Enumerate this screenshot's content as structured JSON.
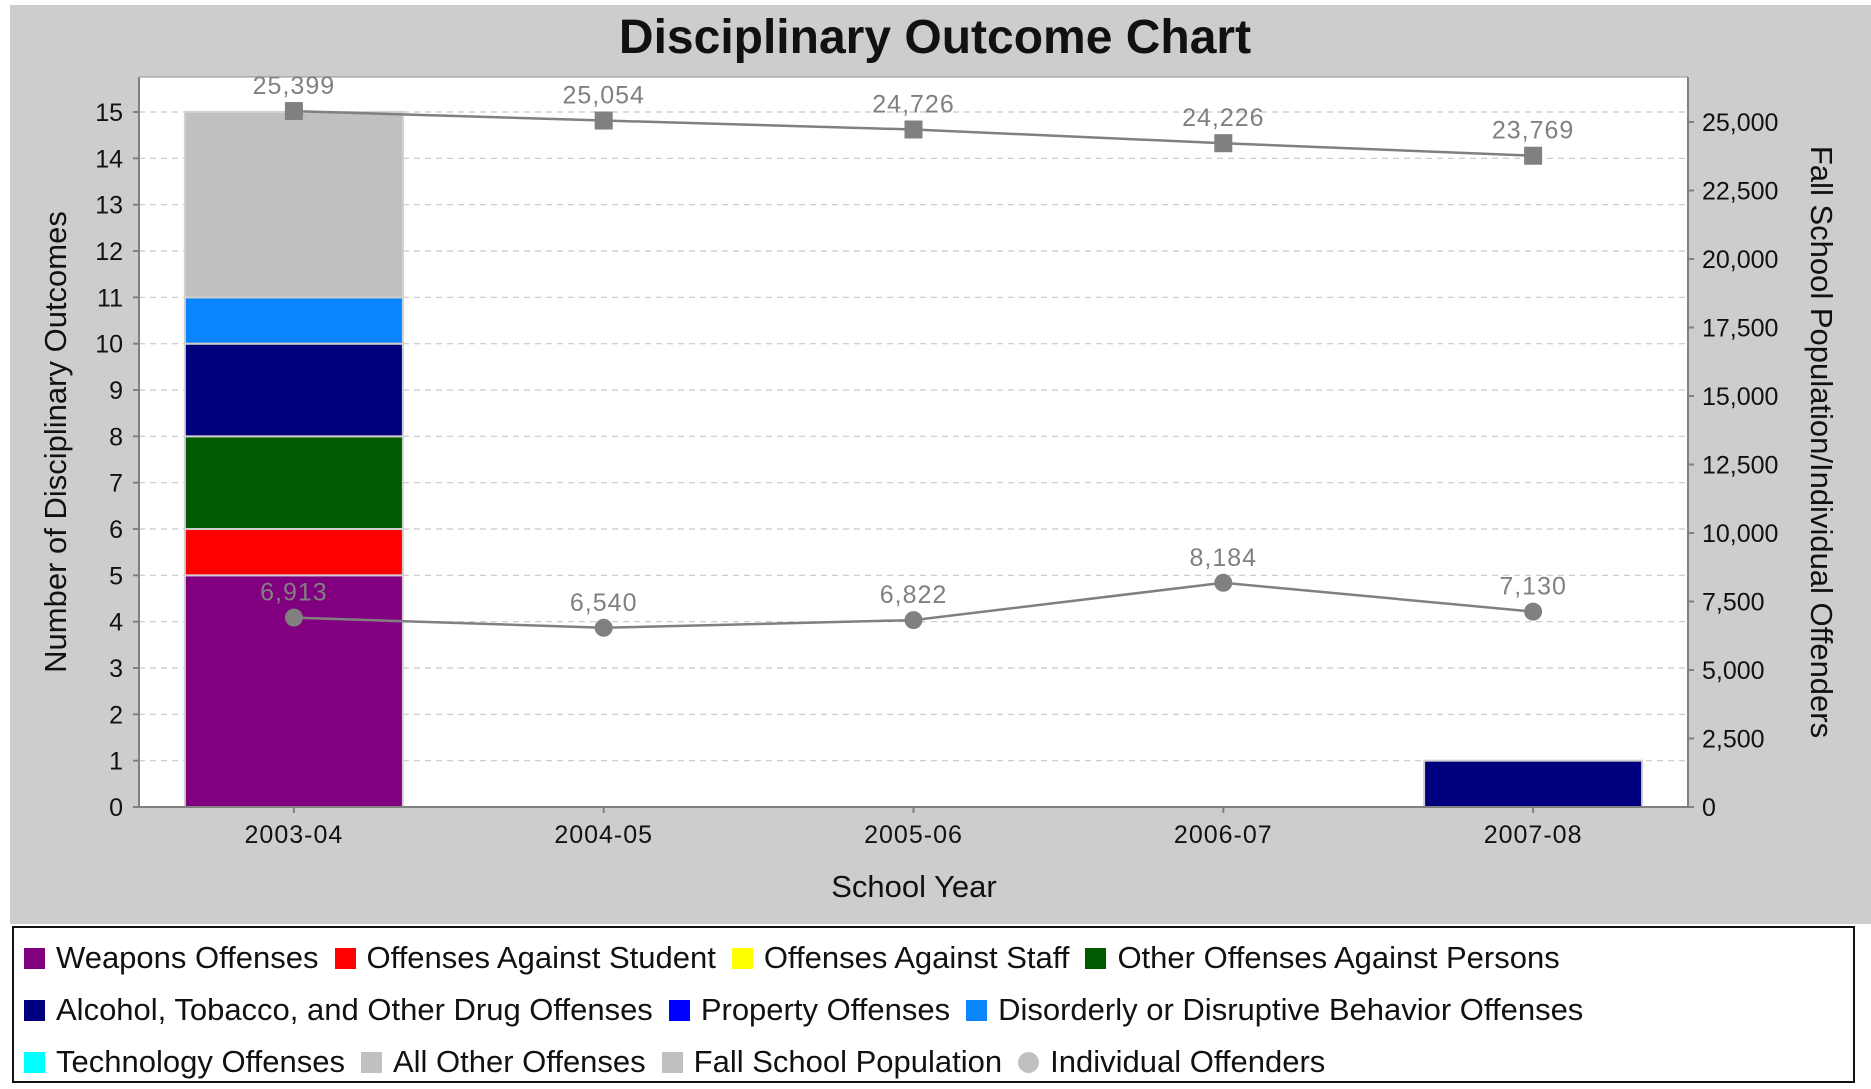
{
  "chart_data": {
    "type": "bar",
    "title": "Disciplinary Outcome Chart",
    "xlabel": "School Year",
    "ylabel": "Number of Disciplinary Outcomes",
    "y2label": "Fall School Population/Individual Offenders",
    "categories": [
      "2003-04",
      "2004-05",
      "2005-06",
      "2006-07",
      "2007-08"
    ],
    "ylim": [
      0,
      15
    ],
    "yticks": [
      "0",
      "1",
      "2",
      "3",
      "4",
      "5",
      "6",
      "7",
      "8",
      "9",
      "10",
      "11",
      "12",
      "13",
      "14",
      "15"
    ],
    "y2lim": [
      0,
      25000
    ],
    "y2ticks": [
      "0",
      "2,500",
      "5,000",
      "7,500",
      "10,000",
      "12,500",
      "15,000",
      "17,500",
      "20,000",
      "22,500",
      "25,000"
    ],
    "grid": true,
    "legend_position": "bottom",
    "stacked": true,
    "series": [
      {
        "name": "Weapons Offenses",
        "color": "#800080",
        "values": [
          5,
          0,
          0,
          0,
          0
        ]
      },
      {
        "name": "Offenses Against Student",
        "color": "#ff0000",
        "values": [
          1,
          0,
          0,
          0,
          0
        ]
      },
      {
        "name": "Offenses Against Staff",
        "color": "#ffff00",
        "values": [
          0,
          0,
          0,
          0,
          0
        ]
      },
      {
        "name": "Other Offenses Against Persons",
        "color": "#005a00",
        "values": [
          2,
          0,
          0,
          0,
          0
        ]
      },
      {
        "name": "Alcohol, Tobacco, and Other Drug Offenses",
        "color": "#00007f",
        "values": [
          2,
          0,
          0,
          0,
          1
        ]
      },
      {
        "name": "Property Offenses",
        "color": "#0000ff",
        "values": [
          0,
          0,
          0,
          0,
          0
        ]
      },
      {
        "name": "Disorderly or Disruptive Behavior Offenses",
        "color": "#0a84ff",
        "values": [
          1,
          0,
          0,
          0,
          0
        ]
      },
      {
        "name": "Technology Offenses",
        "color": "#00ffff",
        "values": [
          0,
          0,
          0,
          0,
          0
        ]
      },
      {
        "name": "All Other Offenses",
        "color": "#c0c0c0",
        "values": [
          4,
          0,
          0,
          0,
          0
        ]
      }
    ],
    "line_series": [
      {
        "name": "Fall School Population",
        "color": "#808080",
        "marker": "square",
        "values": [
          25399,
          25054,
          24726,
          24226,
          23769
        ],
        "labels": [
          "25,399",
          "25,054",
          "24,726",
          "24,226",
          "23,769"
        ]
      },
      {
        "name": "Individual Offenders",
        "color": "#808080",
        "marker": "circle",
        "values": [
          6913,
          6540,
          6822,
          8184,
          7130
        ],
        "labels": [
          "6,913",
          "6,540",
          "6,822",
          "8,184",
          "7,130"
        ]
      }
    ]
  },
  "legend": {
    "rows": [
      [
        {
          "label": "Weapons Offenses",
          "color": "#800080",
          "shape": "square"
        },
        {
          "label": "Offenses Against Student",
          "color": "#ff0000",
          "shape": "square"
        },
        {
          "label": "Offenses Against Staff",
          "color": "#ffff00",
          "shape": "square"
        },
        {
          "label": "Other Offenses Against Persons",
          "color": "#005a00",
          "shape": "square"
        }
      ],
      [
        {
          "label": "Alcohol, Tobacco, and Other Drug Offenses",
          "color": "#00007f",
          "shape": "square"
        },
        {
          "label": "Property Offenses",
          "color": "#0000ff",
          "shape": "square"
        },
        {
          "label": "Disorderly or Disruptive Behavior Offenses",
          "color": "#0a84ff",
          "shape": "square"
        }
      ],
      [
        {
          "label": "Technology Offenses",
          "color": "#00ffff",
          "shape": "square"
        },
        {
          "label": "All Other Offenses",
          "color": "#c0c0c0",
          "shape": "square"
        },
        {
          "label": "Fall School Population",
          "color": "#c0c0c0",
          "shape": "square"
        },
        {
          "label": "Individual Offenders",
          "color": "#c0c0c0",
          "shape": "circle"
        }
      ]
    ]
  },
  "colors": {
    "frame_background": "#cdcdcd",
    "plot_background": "#ffffff",
    "grid": "#c8c8c8",
    "line": "#808080",
    "bar_outline": "#d0d0d0"
  }
}
